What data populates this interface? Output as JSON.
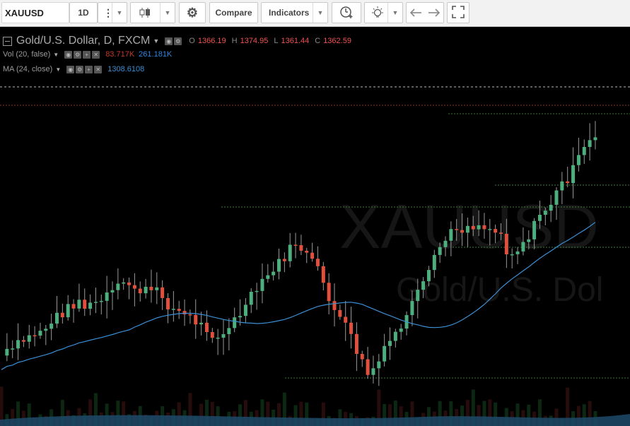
{
  "toolbar": {
    "symbol": "XAUUSD",
    "interval": "1D",
    "compare_label": "Compare",
    "indicators_label": "Indicators"
  },
  "legend": {
    "title": "Gold/U.S. Dollar, D, FXCM",
    "ohlc": {
      "o_label": "O",
      "o": "1366.19",
      "h_label": "H",
      "h": "1374.95",
      "l_label": "L",
      "l": "1361.44",
      "c_label": "C",
      "c": "1362.59"
    },
    "vol_label": "Vol (20, false)",
    "vol_value1": "83.717K",
    "vol_value2": "261.181K",
    "ma_label": "MA (24, close)",
    "ma_value": "1308.6108"
  },
  "watermark": {
    "symbol": "XAUUSD",
    "description": "Gold/U.S. Dol"
  },
  "colors": {
    "up": "#4caf7d",
    "down": "#e0503c",
    "ma": "#3b8fd6",
    "support": "#3a7a3a",
    "resistance": "#8a3a2a",
    "volume": "#1d4a6a"
  },
  "icons": [
    "menu-dots-icon",
    "candles-icon",
    "gear-icon",
    "alert-icon",
    "idea-bulb-icon",
    "undo-icon",
    "redo-icon",
    "fullscreen-icon"
  ]
}
